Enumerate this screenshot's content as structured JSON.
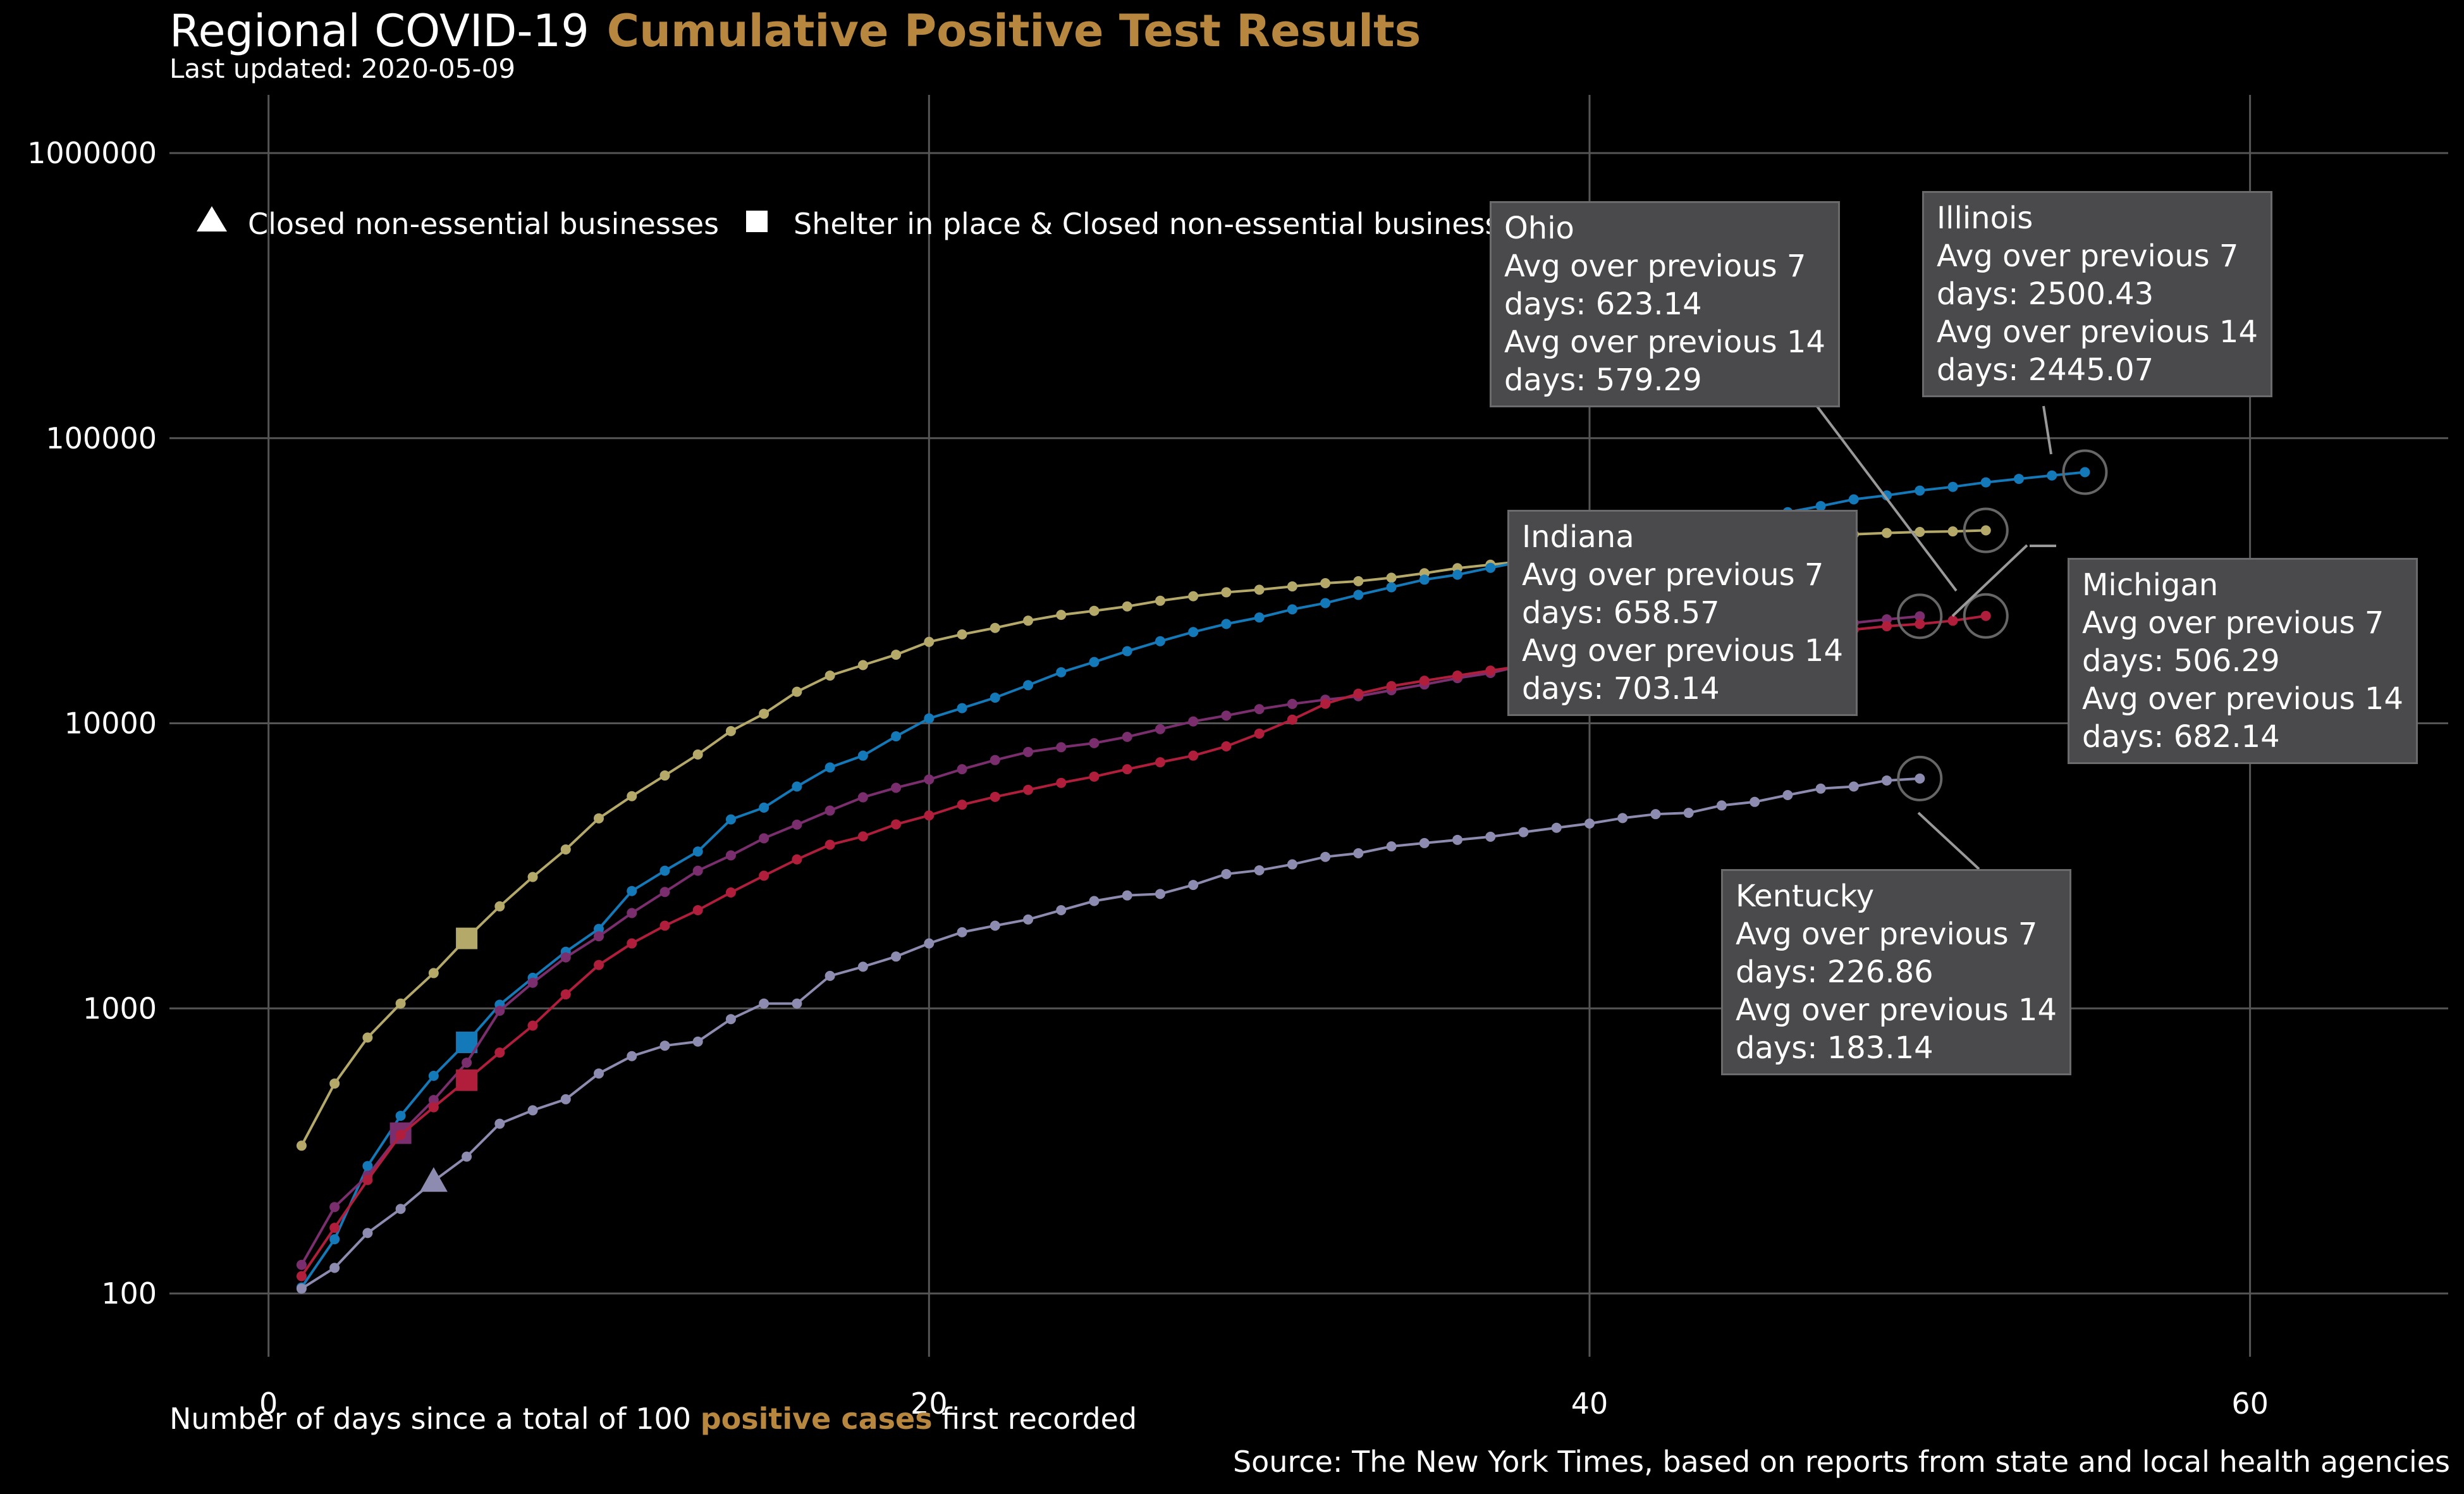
{
  "header": {
    "title_prefix": "Regional COVID-19",
    "title_accent": "Cumulative Positive Test Results",
    "subtitle": "Last updated: 2020-05-09"
  },
  "footer": {
    "xlabel_prefix": "Number of days since a total of 100",
    "xlabel_accent": "positive cases",
    "xlabel_suffix": "first recorded",
    "source": "Source: The New York Times, based on reports from state and local health agencies"
  },
  "legend": {
    "triangle_label": "Closed non-essential businesses",
    "square_label": "Shelter in place & Closed non-essential businesses"
  },
  "colors": {
    "accent": "#b8873f",
    "grid": "#555555",
    "tooltip_bg": "#4a4a4d"
  },
  "chart_data": {
    "type": "line",
    "x_type": "days",
    "y_scale": "log",
    "xlim": [
      -3,
      66
    ],
    "ylim": [
      60,
      1600000
    ],
    "x_ticks": [
      "0",
      "20",
      "40",
      "60"
    ],
    "y_ticks": [
      "100",
      "1000",
      "10000",
      "100000",
      "1000000"
    ],
    "grid": true,
    "legend_position": "top-left",
    "series": [
      {
        "name": "Ohio",
        "color": "#b5a96a",
        "x_start": 1,
        "values": [
          330,
          545,
          790,
          1040,
          1330,
          1760,
          2280,
          2890,
          3610,
          4640,
          5550,
          6560,
          7770,
          9390,
          10800,
          12900,
          14700,
          16000,
          17400,
          19300,
          20500,
          21600,
          22900,
          24000,
          24800,
          25700,
          26900,
          27900,
          28800,
          29400,
          30200,
          31000,
          31500,
          32400,
          33600,
          35000,
          36000,
          37000,
          38400,
          39500,
          40500,
          41300,
          42000,
          43200,
          44200,
          45000,
          45500,
          46000,
          46500,
          46900,
          47100,
          47500
        ],
        "marker": {
          "type": "square",
          "x": 6,
          "y": 1760
        },
        "annotation": {
          "title": "Ohio",
          "avg7_line1": "Avg over previous 7",
          "avg7_line2": "days: 623.14",
          "avg14_line1": "Avg over previous 14",
          "avg14_line2": "days: 579.29"
        }
      },
      {
        "name": "Illinois",
        "color": "#1479b8",
        "x_start": 1,
        "values": [
          105,
          155,
          280,
          420,
          580,
          760,
          1030,
          1280,
          1580,
          1900,
          2580,
          3040,
          3550,
          4600,
          5060,
          6000,
          7000,
          7700,
          9000,
          10400,
          11300,
          12300,
          13600,
          15100,
          16400,
          17900,
          19400,
          20900,
          22300,
          23500,
          25100,
          26400,
          28200,
          30000,
          31900,
          33200,
          35100,
          37000,
          38900,
          41100,
          43000,
          45100,
          47500,
          50000,
          52500,
          55000,
          57800,
          61000,
          63000,
          65500,
          67500,
          70000,
          72000,
          74000,
          76000
        ],
        "marker": {
          "type": "square",
          "x": 6,
          "y": 760
        },
        "annotation": {
          "title": "Illinois",
          "avg7_line1": "Avg over previous 7",
          "avg7_line2": "days: 2500.43",
          "avg14_line1": "Avg over previous 14",
          "avg14_line2": "days: 2445.07"
        }
      },
      {
        "name": "Indiana",
        "color": "#7b2e6e",
        "x_start": 1,
        "values": [
          126,
          201,
          259,
          365,
          477,
          645,
          981,
          1230,
          1510,
          1790,
          2160,
          2560,
          3040,
          3440,
          3950,
          4410,
          4940,
          5500,
          5940,
          6350,
          6900,
          7430,
          7930,
          8240,
          8520,
          8960,
          9540,
          10150,
          10640,
          11210,
          11690,
          12100,
          12440,
          13060,
          13680,
          14400,
          15010,
          15960,
          16590,
          17180,
          17830,
          18630,
          19300,
          20000,
          20520,
          21030,
          21510,
          22500,
          23150,
          23730
        ],
        "marker": {
          "type": "square",
          "x": 4,
          "y": 365
        },
        "annotation": {
          "title": "Indiana",
          "avg7_line1": "Avg over previous 7",
          "avg7_line2": "days: 658.57",
          "avg14_line1": "Avg over previous 14",
          "avg14_line2": "days: 703.14"
        }
      },
      {
        "name": "Michigan",
        "color": "#b01e3c",
        "x_start": 1,
        "values": [
          115,
          170,
          250,
          360,
          450,
          560,
          700,
          870,
          1120,
          1420,
          1690,
          1950,
          2210,
          2550,
          2920,
          3330,
          3750,
          4010,
          4420,
          4750,
          5180,
          5520,
          5840,
          6180,
          6500,
          6900,
          7300,
          7700,
          8300,
          9200,
          10300,
          11700,
          12700,
          13500,
          14100,
          14700,
          15300,
          15900,
          16400,
          17100,
          17600,
          18200,
          18600,
          19200,
          19700,
          20200,
          20700,
          21300,
          21900,
          22300,
          22900,
          23800
        ],
        "marker": {
          "type": "square",
          "x": 6,
          "y": 560
        },
        "annotation": {
          "title": "Michigan",
          "avg7_line1": "Avg over previous 7",
          "avg7_line2": "days: 506.29",
          "avg14_line1": "Avg over previous 14",
          "avg14_line2": "days: 682.14"
        }
      },
      {
        "name": "Kentucky",
        "color": "#8d8bb0",
        "x_start": 1,
        "values": [
          104,
          123,
          163,
          198,
          248,
          302,
          394,
          439,
          480,
          591,
          680,
          740,
          765,
          917,
          1040,
          1040,
          1300,
          1400,
          1520,
          1690,
          1850,
          1950,
          2050,
          2210,
          2380,
          2490,
          2520,
          2710,
          2960,
          3050,
          3200,
          3400,
          3500,
          3700,
          3800,
          3900,
          4000,
          4150,
          4300,
          4450,
          4650,
          4800,
          4850,
          5150,
          5300,
          5600,
          5900,
          6000,
          6300,
          6400
        ],
        "marker": {
          "type": "triangle",
          "x": 5,
          "y": 248
        },
        "annotation": {
          "title": "Kentucky",
          "avg7_line1": "Avg over previous 7",
          "avg7_line2": "days: 226.86",
          "avg14_line1": "Avg over previous 14",
          "avg14_line2": "days: 183.14"
        }
      }
    ]
  }
}
